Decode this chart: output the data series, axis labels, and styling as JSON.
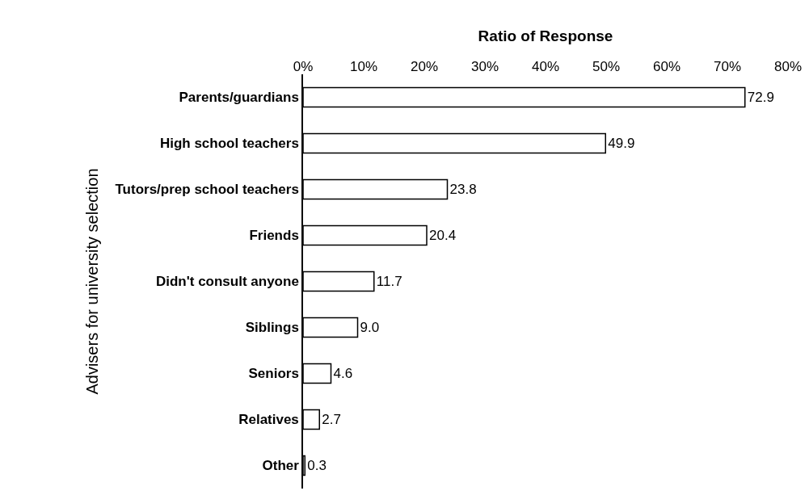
{
  "chart_data": {
    "type": "bar",
    "orientation": "horizontal",
    "xlabel": "Ratio of Response",
    "ylabel": "Advisers for university selection",
    "categories": [
      "Parents/guardians",
      "High school teachers",
      "Tutors/prep school teachers",
      "Friends",
      "Didn't consult anyone",
      "Siblings",
      "Seniors",
      "Relatives",
      "Other"
    ],
    "values": [
      72.9,
      49.9,
      23.8,
      20.4,
      11.7,
      9.0,
      4.6,
      2.7,
      0.3
    ],
    "value_labels": [
      "72.9",
      "49.9",
      "23.8",
      "20.4",
      "11.7",
      "9.0",
      "4.6",
      "2.7",
      "0.3"
    ],
    "color": "#ffffff",
    "xlim": [
      0,
      80
    ],
    "xticks": [
      {
        "value": 0,
        "label": "0%"
      },
      {
        "value": 10,
        "label": "10%"
      },
      {
        "value": 20,
        "label": "20%"
      },
      {
        "value": 30,
        "label": "30%"
      },
      {
        "value": 40,
        "label": "40%"
      },
      {
        "value": 50,
        "label": "50%"
      },
      {
        "value": 60,
        "label": "60%"
      },
      {
        "value": 70,
        "label": "70%"
      },
      {
        "value": 80,
        "label": "80%"
      }
    ]
  }
}
